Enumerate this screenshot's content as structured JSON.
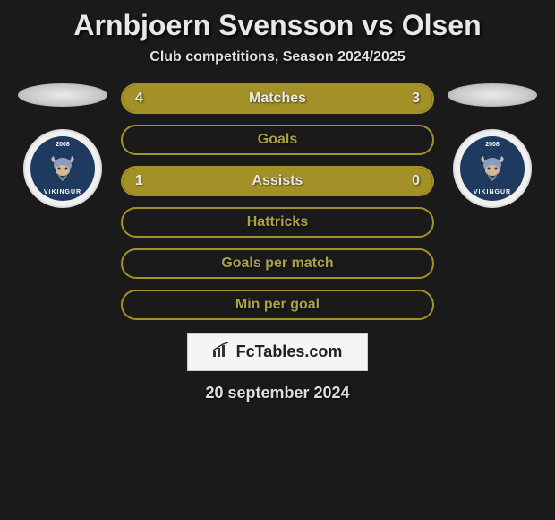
{
  "title": "Arnbjoern Svensson vs Olsen",
  "subtitle": "Club competitions, Season 2024/2025",
  "date": "20 september 2024",
  "branding": {
    "text": "FcTables.com"
  },
  "colors": {
    "background": "#1a1a1a",
    "accent": "#a39127",
    "fill": "#a39127",
    "label_text": "#aba04c",
    "label_text_filled": "#e8e8e8",
    "border": "#a39127"
  },
  "club": {
    "year": "2008",
    "name": "VIKINGUR",
    "logo_bg": "#1e3a5f"
  },
  "stats": [
    {
      "label": "Matches",
      "left_value": "4",
      "right_value": "3",
      "left_pct": 57,
      "right_pct": 43,
      "show_values": true,
      "filled": true
    },
    {
      "label": "Goals",
      "left_value": "",
      "right_value": "",
      "left_pct": 0,
      "right_pct": 0,
      "show_values": false,
      "filled": false
    },
    {
      "label": "Assists",
      "left_value": "1",
      "right_value": "0",
      "left_pct": 78,
      "right_pct": 22,
      "show_values": true,
      "filled": true
    },
    {
      "label": "Hattricks",
      "left_value": "",
      "right_value": "",
      "left_pct": 0,
      "right_pct": 0,
      "show_values": false,
      "filled": false
    },
    {
      "label": "Goals per match",
      "left_value": "",
      "right_value": "",
      "left_pct": 0,
      "right_pct": 0,
      "show_values": false,
      "filled": false
    },
    {
      "label": "Min per goal",
      "left_value": "",
      "right_value": "",
      "left_pct": 0,
      "right_pct": 0,
      "show_values": false,
      "filled": false
    }
  ]
}
